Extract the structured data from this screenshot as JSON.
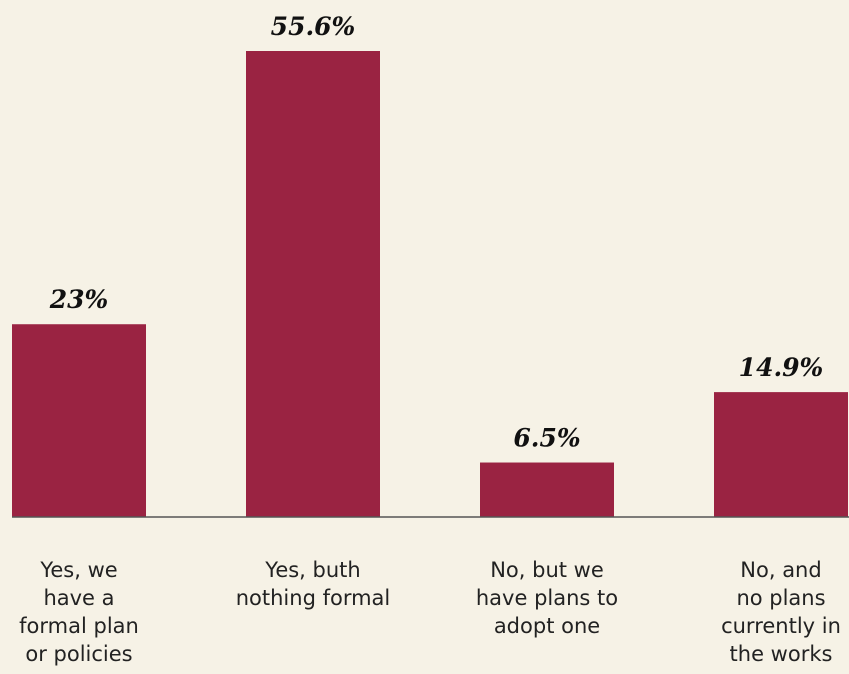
{
  "chart_data": {
    "type": "bar",
    "categories": [
      [
        "Yes, we",
        "have a",
        "formal plan",
        "or policies"
      ],
      [
        "Yes, buth",
        "nothing formal"
      ],
      [
        "No, but we",
        "have plans to",
        "adopt one"
      ],
      [
        "No, and",
        "no plans",
        "currently in",
        "the works"
      ]
    ],
    "values": [
      23,
      55.6,
      6.5,
      14.9
    ],
    "value_labels": [
      "23%",
      "55.6%",
      "6.5%",
      "14.9%"
    ],
    "ylim": [
      0,
      55.6
    ],
    "grid": false,
    "legend": "none",
    "title": "",
    "xlabel": "",
    "ylabel": ""
  },
  "colors": {
    "background": "#f6f2e6",
    "bar": "#9a2342",
    "baseline": "#555555",
    "value_text": "#111111",
    "category_text": "#222222"
  }
}
